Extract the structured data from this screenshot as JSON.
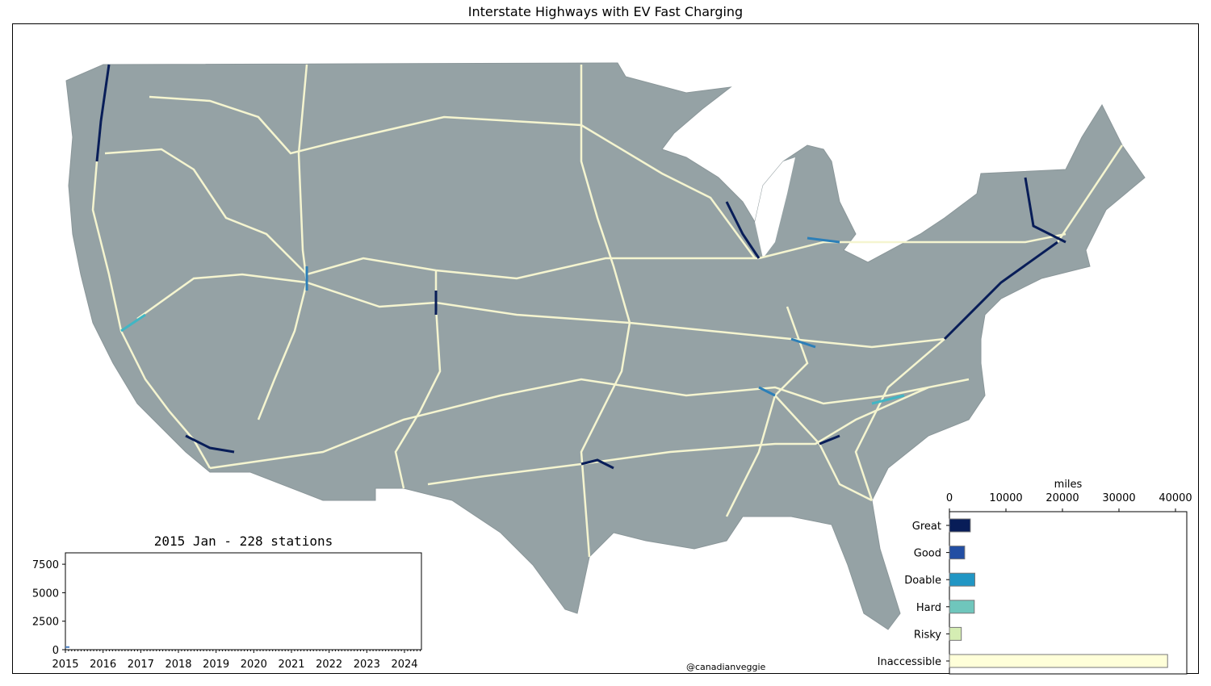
{
  "title": "Interstate Highways with EV Fast Charging",
  "credit": "@canadianveggie",
  "map": {
    "land_color": "#95a2a5",
    "highway_color": "#f5f5d0",
    "charging_colors": [
      "#081d58",
      "#2c7fb8",
      "#41b6c4"
    ]
  },
  "chart_data": [
    {
      "type": "bar",
      "orientation": "horizontal",
      "xlabel": "miles",
      "categories": [
        "Great",
        "Good",
        "Doable",
        "Hard",
        "Risky",
        "Inaccessible"
      ],
      "values": [
        3700,
        2700,
        4500,
        4400,
        2100,
        38600
      ],
      "colors": [
        "#081d58",
        "#224ea3",
        "#2196c4",
        "#6fc6bc",
        "#d5edb3",
        "#ffffd9"
      ],
      "xlim": [
        0,
        42000
      ],
      "xticks": [
        "0",
        "10000",
        "20000",
        "30000",
        "40000"
      ]
    },
    {
      "type": "line",
      "title": "2015 Jan - 228 stations",
      "x": [
        "2015-01"
      ],
      "y": [
        228
      ],
      "xlim": [
        "2015-01",
        "2024-06"
      ],
      "ylim": [
        0,
        8500
      ],
      "xticks": [
        "2015",
        "2016",
        "2017",
        "2018",
        "2019",
        "2020",
        "2021",
        "2022",
        "2023",
        "2024"
      ],
      "yticks": [
        "0",
        "2500",
        "5000",
        "7500"
      ]
    }
  ]
}
